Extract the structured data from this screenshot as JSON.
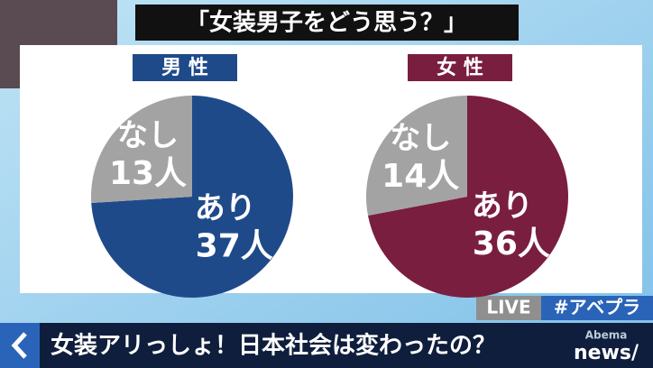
{
  "header": {
    "title": "「女装男子をどう思う？」"
  },
  "chart_data": [
    {
      "type": "pie",
      "title": "男 性",
      "title_color": "#1f4a8a",
      "categories": [
        "あり",
        "なし"
      ],
      "values": [
        37,
        13
      ],
      "value_labels": [
        "37人",
        "13人"
      ],
      "colors": [
        "#1f4a8a",
        "#a3a3a3"
      ]
    },
    {
      "type": "pie",
      "title": "女 性",
      "title_color": "#7a1e40",
      "categories": [
        "あり",
        "なし"
      ],
      "values": [
        36,
        14
      ],
      "value_labels": [
        "36人",
        "14人"
      ],
      "colors": [
        "#7a1e40",
        "#a3a3a3"
      ]
    }
  ],
  "tags": {
    "live": "LIVE",
    "hashtag": "#アベプラ"
  },
  "banner": {
    "headline": "女装アリっしょ！日本社会は変わったの？",
    "logo_top": "Abema",
    "logo_bottom": "news/"
  }
}
